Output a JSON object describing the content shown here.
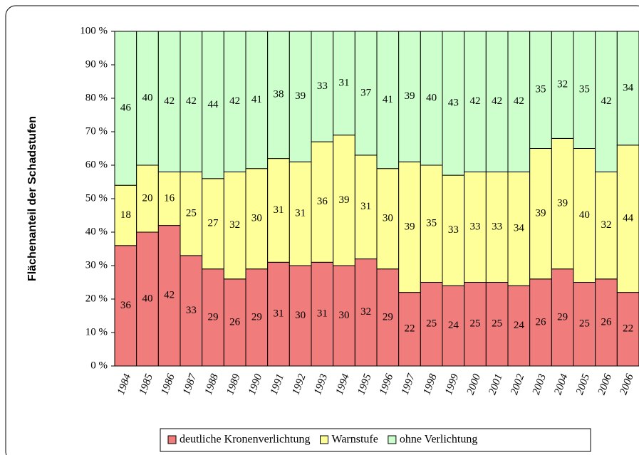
{
  "chart_data": {
    "type": "stacked_bar",
    "y_label": "Flächenanteil der Schadstufen",
    "categories": [
      "1984",
      "1985",
      "1986",
      "1987",
      "1988",
      "1989",
      "1990",
      "1991",
      "1992",
      "1993",
      "1994",
      "1995",
      "1996",
      "1997",
      "1998",
      "1999",
      "2000",
      "2001",
      "2002",
      "2003",
      "2004",
      "2005",
      "2006",
      "2006"
    ],
    "series": [
      {
        "name": "deutliche Kronenverlichtung",
        "color": "#f07c7c",
        "values": [
          36,
          40,
          42,
          33,
          29,
          26,
          29,
          31,
          30,
          31,
          30,
          32,
          29,
          22,
          25,
          24,
          25,
          25,
          24,
          26,
          29,
          25,
          26,
          22
        ]
      },
      {
        "name": "Warnstufe",
        "color": "#ffff99",
        "values": [
          18,
          20,
          16,
          25,
          27,
          32,
          30,
          31,
          31,
          36,
          39,
          31,
          30,
          39,
          35,
          33,
          33,
          33,
          34,
          39,
          39,
          40,
          32,
          44
        ]
      },
      {
        "name": "ohne Verlichtung",
        "color": "#ccffcc",
        "values": [
          46,
          40,
          42,
          42,
          44,
          42,
          41,
          38,
          39,
          33,
          31,
          37,
          41,
          39,
          40,
          43,
          42,
          42,
          42,
          35,
          32,
          35,
          42,
          34
        ]
      }
    ],
    "ylim": [
      0,
      100
    ],
    "yticks": [
      {
        "value": 0,
        "label": "0 %"
      },
      {
        "value": 10,
        "label": "10 %"
      },
      {
        "value": 20,
        "label": "20 %"
      },
      {
        "value": 30,
        "label": "30 %"
      },
      {
        "value": 40,
        "label": "40 %"
      },
      {
        "value": 50,
        "label": "50 %"
      },
      {
        "value": 60,
        "label": "60 %"
      },
      {
        "value": 70,
        "label": "70 %"
      },
      {
        "value": 80,
        "label": "80 %"
      },
      {
        "value": 90,
        "label": "90 %"
      },
      {
        "value": 100,
        "label": "100 %"
      }
    ],
    "legend": "bottom"
  }
}
